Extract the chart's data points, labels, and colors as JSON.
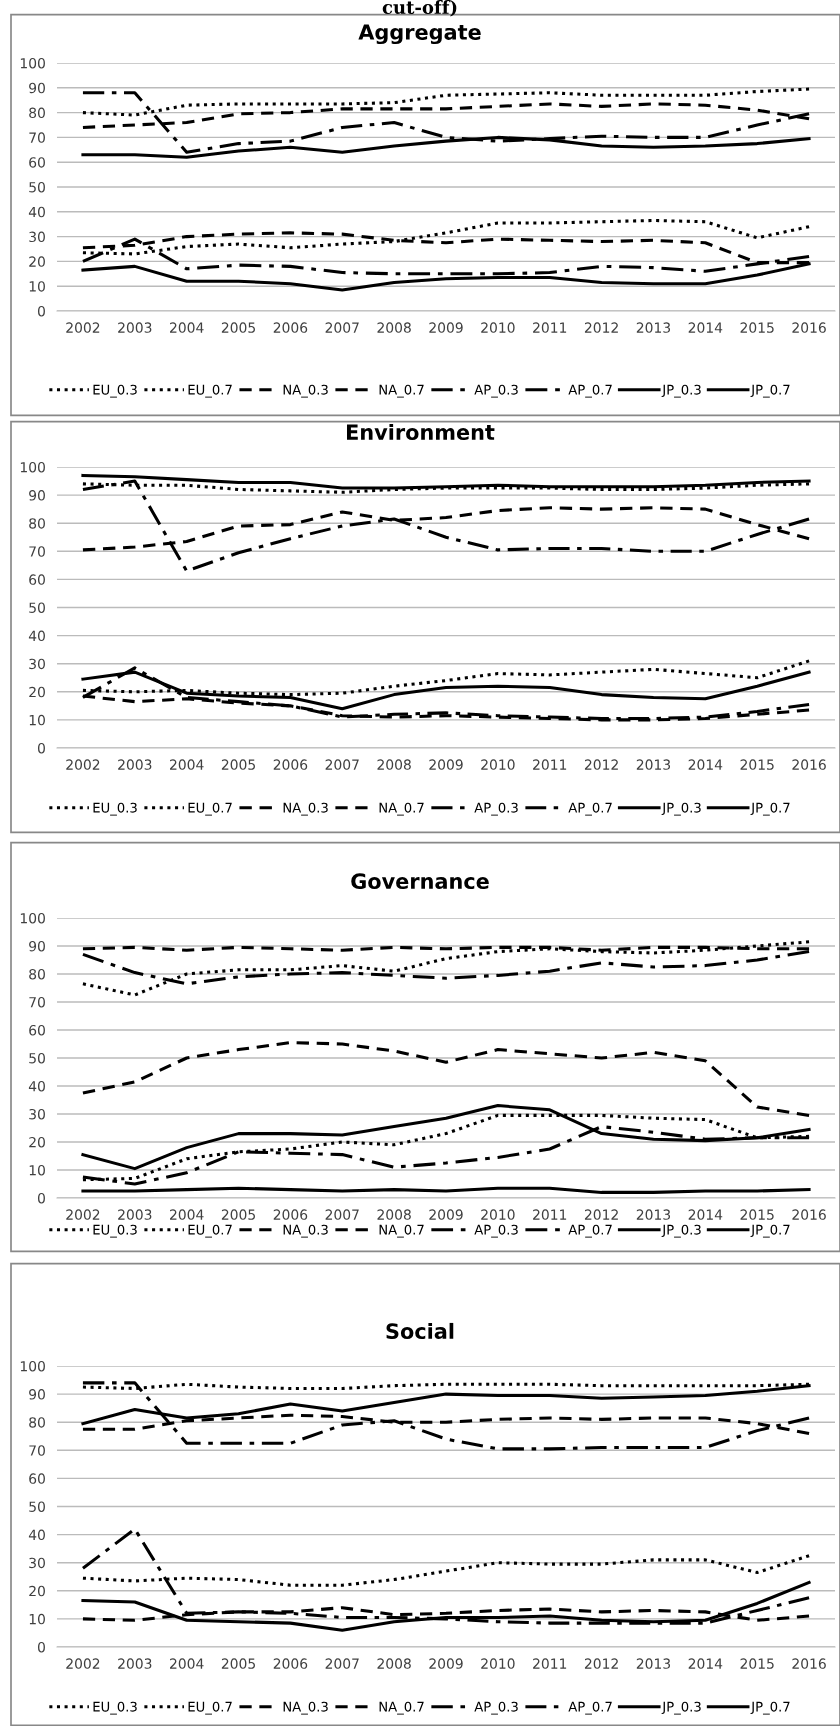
{
  "chart_data": [
    {
      "type": "line",
      "title": "Aggregate",
      "annotations": [
        "cut-off)"
      ],
      "categories": [
        "2002",
        "2003",
        "2004",
        "2005",
        "2006",
        "2007",
        "2008",
        "2009",
        "2010",
        "2011",
        "2012",
        "2013",
        "2014",
        "2015",
        "2016"
      ],
      "ylim": [
        0,
        100
      ],
      "yticks": [
        0,
        10,
        20,
        30,
        40,
        50,
        60,
        70,
        80,
        90,
        100
      ],
      "grid": "y",
      "legend": "bottom",
      "marker": "none",
      "series": [
        {
          "name": "EU_0.3",
          "color": "#000000",
          "line_style": "dotted",
          "values": [
            80,
            79,
            83,
            83.5,
            83.5,
            83.5,
            84,
            87,
            87.5,
            88,
            87,
            87,
            87,
            88.5,
            89.5
          ]
        },
        {
          "name": "EU_0.7",
          "color": "#000000",
          "line_style": "dotted",
          "values": [
            23.5,
            23,
            26,
            27,
            25.5,
            27,
            28,
            31.5,
            35.5,
            35.5,
            36,
            36.5,
            36,
            29.5,
            34
          ]
        },
        {
          "name": "NA_0.3",
          "color": "#000000",
          "line_style": "dashed",
          "values": [
            74,
            75,
            76,
            79.5,
            80,
            81.5,
            81.5,
            81.5,
            82.5,
            83.5,
            82.5,
            83.5,
            83,
            81,
            77.5
          ]
        },
        {
          "name": "NA_0.7",
          "color": "#000000",
          "line_style": "dashed",
          "values": [
            25.5,
            26.5,
            30,
            31,
            31.5,
            31,
            28.5,
            27.5,
            29,
            28.5,
            28,
            28.5,
            27.5,
            19.5,
            19.5
          ]
        },
        {
          "name": "AP_0.3",
          "color": "#000000",
          "line_style": "dashdot",
          "values": [
            88,
            88,
            64,
            67.5,
            68.5,
            74,
            76,
            70,
            68.5,
            69.5,
            70.5,
            70,
            70,
            75,
            79.5
          ]
        },
        {
          "name": "AP_0.7",
          "color": "#000000",
          "line_style": "dashdot",
          "values": [
            20,
            29,
            17,
            18.5,
            18,
            15.5,
            15,
            15,
            15,
            15.5,
            18,
            17.5,
            16,
            19,
            22
          ]
        },
        {
          "name": "JP_0.3",
          "color": "#000000",
          "line_style": "solid",
          "values": [
            63,
            63,
            62,
            64.5,
            66,
            64,
            66.5,
            68.5,
            70,
            69,
            66.5,
            66,
            66.5,
            67.5,
            69.5
          ]
        },
        {
          "name": "JP_0.7",
          "color": "#000000",
          "line_style": "solid",
          "values": [
            16.5,
            18,
            12,
            12,
            11,
            8.5,
            11.5,
            13,
            13.5,
            13.5,
            11.5,
            11,
            11,
            14.5,
            19
          ]
        }
      ]
    },
    {
      "type": "line",
      "title": "Environment",
      "categories": [
        "2002",
        "2003",
        "2004",
        "2005",
        "2006",
        "2007",
        "2008",
        "2009",
        "2010",
        "2011",
        "2012",
        "2013",
        "2014",
        "2015",
        "2016"
      ],
      "ylim": [
        0,
        100
      ],
      "yticks": [
        0,
        10,
        20,
        30,
        40,
        50,
        60,
        70,
        80,
        90,
        100
      ],
      "grid": "y",
      "legend": "bottom",
      "marker": "none",
      "series": [
        {
          "name": "EU_0.3",
          "color": "#000000",
          "line_style": "dotted",
          "values": [
            94,
            93.5,
            93.5,
            92,
            91.5,
            91,
            92,
            92.5,
            92.5,
            92.5,
            92,
            92,
            92.5,
            93.5,
            94
          ]
        },
        {
          "name": "EU_0.7",
          "color": "#000000",
          "line_style": "dotted",
          "values": [
            20.5,
            20,
            20.5,
            19.5,
            19,
            19.5,
            22,
            24,
            26.5,
            26,
            27,
            28,
            26.5,
            25,
            31
          ]
        },
        {
          "name": "NA_0.3",
          "color": "#000000",
          "line_style": "dashed",
          "values": [
            70.5,
            71.5,
            73.5,
            79,
            79.5,
            84,
            81,
            82,
            84.5,
            85.5,
            85,
            85.5,
            85,
            79.5,
            74.5
          ]
        },
        {
          "name": "NA_0.7",
          "color": "#000000",
          "line_style": "dashed",
          "values": [
            18.5,
            16.5,
            17.5,
            16,
            15,
            11.5,
            11,
            11.5,
            11,
            10.5,
            10,
            10,
            10.5,
            12,
            13.5
          ]
        },
        {
          "name": "AP_0.3",
          "color": "#000000",
          "line_style": "dashdot",
          "values": [
            92,
            95,
            63,
            69.5,
            74.5,
            79,
            81.5,
            75,
            70.5,
            71,
            71,
            70,
            70,
            76,
            81.5
          ]
        },
        {
          "name": "AP_0.7",
          "color": "#000000",
          "line_style": "dashdot",
          "values": [
            18,
            28.5,
            18,
            16.5,
            15,
            11,
            12,
            12.5,
            11.5,
            11,
            10.5,
            10.5,
            11,
            13,
            15.5
          ]
        },
        {
          "name": "JP_0.3",
          "color": "#000000",
          "line_style": "solid",
          "values": [
            97,
            96.5,
            95.5,
            94.5,
            94.5,
            92.5,
            92.5,
            93,
            93.5,
            93,
            93,
            93,
            93.5,
            94.5,
            95
          ]
        },
        {
          "name": "JP_0.7",
          "color": "#000000",
          "line_style": "solid",
          "values": [
            24.5,
            27,
            19.5,
            18.5,
            18,
            14,
            19,
            21.5,
            22,
            21.5,
            19,
            18,
            17.5,
            22,
            27
          ]
        }
      ]
    },
    {
      "type": "line",
      "title": "Governance",
      "categories": [
        "2002",
        "2003",
        "2004",
        "2005",
        "2006",
        "2007",
        "2008",
        "2009",
        "2010",
        "2011",
        "2012",
        "2013",
        "2014",
        "2015",
        "2016"
      ],
      "ylim": [
        0,
        100
      ],
      "yticks": [
        0,
        10,
        20,
        30,
        40,
        50,
        60,
        70,
        80,
        90,
        100
      ],
      "grid": "y",
      "legend": "bottom",
      "marker": "none",
      "series": [
        {
          "name": "EU_0.3",
          "color": "#000000",
          "line_style": "dotted",
          "values": [
            76.5,
            72.5,
            80,
            81.5,
            81.5,
            83,
            81,
            85.5,
            88,
            89,
            88,
            87.5,
            88.5,
            90,
            91.5
          ]
        },
        {
          "name": "EU_0.7",
          "color": "#000000",
          "line_style": "dotted",
          "values": [
            6.5,
            7,
            14,
            16.5,
            17.5,
            20,
            19,
            23,
            29.5,
            29.5,
            29.5,
            28.5,
            28,
            21.5,
            22
          ]
        },
        {
          "name": "NA_0.3",
          "color": "#000000",
          "line_style": "dashed",
          "values": [
            89,
            89.5,
            88.5,
            89.5,
            89,
            88.5,
            89.5,
            89,
            89.5,
            89.5,
            88.5,
            89.5,
            89.5,
            89,
            89
          ]
        },
        {
          "name": "NA_0.7",
          "color": "#000000",
          "line_style": "dashed",
          "values": [
            37.5,
            41.5,
            50,
            53,
            55.5,
            55,
            52.5,
            48.5,
            53,
            51.5,
            50,
            52,
            49,
            32.5,
            29.5
          ]
        },
        {
          "name": "AP_0.3",
          "color": "#000000",
          "line_style": "dashdot",
          "values": [
            87,
            80.5,
            76.5,
            79,
            80,
            80.5,
            79.5,
            78.5,
            79.5,
            81,
            84,
            82.5,
            83,
            85,
            88
          ]
        },
        {
          "name": "AP_0.7",
          "color": "#000000",
          "line_style": "dashdot",
          "values": [
            7.5,
            5,
            9,
            16.5,
            16,
            15.5,
            11,
            12.5,
            14.5,
            17.5,
            25.5,
            23.5,
            21,
            21.5,
            21.5
          ]
        },
        {
          "name": "JP_0.3",
          "color": "#000000",
          "line_style": "solid",
          "values": [
            15.5,
            10.5,
            18,
            23,
            23,
            22.5,
            25.5,
            28.5,
            33,
            31.5,
            23,
            21,
            20.5,
            21.5,
            24.5
          ]
        },
        {
          "name": "JP_0.7",
          "color": "#000000",
          "line_style": "solid",
          "values": [
            2.5,
            2.5,
            3,
            3.5,
            3,
            2.5,
            3,
            2.5,
            3.5,
            3.5,
            2,
            2,
            2.5,
            2.5,
            3
          ]
        }
      ]
    },
    {
      "type": "line",
      "title": "Social",
      "categories": [
        "2002",
        "2003",
        "2004",
        "2005",
        "2006",
        "2007",
        "2008",
        "2009",
        "2010",
        "2011",
        "2012",
        "2013",
        "2014",
        "2015",
        "2016"
      ],
      "ylim": [
        0,
        100
      ],
      "yticks": [
        0,
        10,
        20,
        30,
        40,
        50,
        60,
        70,
        80,
        90,
        100
      ],
      "grid": "y",
      "legend": "bottom",
      "marker": "none",
      "series": [
        {
          "name": "EU_0.3",
          "color": "#000000",
          "line_style": "dotted",
          "values": [
            92.5,
            92,
            93.5,
            92.5,
            92,
            92,
            93,
            93.5,
            93.5,
            93.5,
            93,
            93,
            93,
            93,
            93.5
          ]
        },
        {
          "name": "EU_0.7",
          "color": "#000000",
          "line_style": "dotted",
          "values": [
            24.5,
            23.5,
            24.5,
            24,
            22,
            22,
            24,
            27,
            30,
            29.5,
            29.5,
            31,
            31,
            26.5,
            32.5
          ]
        },
        {
          "name": "NA_0.3",
          "color": "#000000",
          "line_style": "dashed",
          "values": [
            77.5,
            77.5,
            80.5,
            81.5,
            82.5,
            82,
            80,
            80,
            81,
            81.5,
            81,
            81.5,
            81.5,
            79.5,
            76
          ]
        },
        {
          "name": "NA_0.7",
          "color": "#000000",
          "line_style": "dashed",
          "values": [
            10,
            9.5,
            11.5,
            12.5,
            12.5,
            14,
            11.5,
            12,
            13,
            13.5,
            12.5,
            13,
            12.5,
            9.5,
            11
          ]
        },
        {
          "name": "AP_0.3",
          "color": "#000000",
          "line_style": "dashdot",
          "values": [
            94,
            94,
            72.5,
            72.5,
            72.5,
            79,
            80.5,
            74,
            70.5,
            70.5,
            71,
            71,
            71,
            77,
            81.5
          ]
        },
        {
          "name": "AP_0.7",
          "color": "#000000",
          "line_style": "dashdot",
          "values": [
            28,
            42,
            12,
            12.5,
            12,
            10.5,
            10.5,
            10,
            9,
            8.5,
            8.5,
            8.5,
            8.5,
            13,
            17.5
          ]
        },
        {
          "name": "JP_0.3",
          "color": "#000000",
          "line_style": "solid",
          "values": [
            79.5,
            84.5,
            81.5,
            83,
            86.5,
            84,
            87,
            90,
            89.5,
            89.5,
            88.5,
            89,
            89.5,
            91,
            93
          ]
        },
        {
          "name": "JP_0.7",
          "color": "#000000",
          "line_style": "solid",
          "values": [
            16.5,
            16,
            9.5,
            9,
            8.5,
            6,
            9,
            10.5,
            10.5,
            11,
            9.5,
            9,
            9.5,
            15.5,
            23
          ]
        }
      ]
    }
  ]
}
